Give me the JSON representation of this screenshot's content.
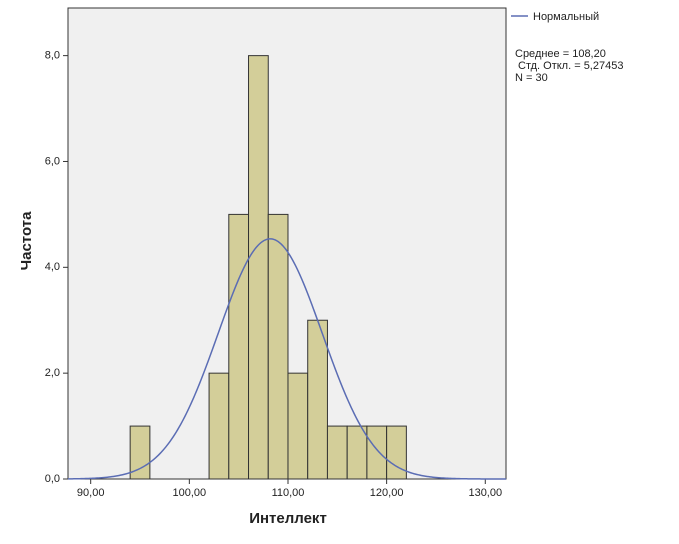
{
  "chart_data": {
    "type": "histogram",
    "xlabel": "Интеллект",
    "ylabel": "Частота",
    "bins": [
      94,
      96,
      98,
      100,
      102,
      104,
      106,
      108,
      110,
      112,
      114,
      116,
      118,
      120,
      122
    ],
    "values": [
      1,
      0,
      0,
      0,
      2,
      5,
      8,
      5,
      2,
      3,
      1,
      1,
      1,
      1
    ],
    "color": "#d3ce99",
    "xlim": [
      87.7,
      132.1
    ],
    "ylim": [
      0,
      8.9
    ],
    "xticks": [
      {
        "value": 90,
        "label": "90,00"
      },
      {
        "value": 100,
        "label": "100,00"
      },
      {
        "value": 110,
        "label": "110,00"
      },
      {
        "value": 120,
        "label": "120,00"
      },
      {
        "value": 130,
        "label": "130,00"
      }
    ],
    "yticks": [
      {
        "value": 0,
        "label": "0,0"
      },
      {
        "value": 2,
        "label": "2,0"
      },
      {
        "value": 4,
        "label": "4,0"
      },
      {
        "value": 6,
        "label": "6,0"
      },
      {
        "value": 8,
        "label": "8,0"
      }
    ],
    "normal": {
      "name": "Нормальный",
      "color": "#5b6db4",
      "mean": {
        "value": 108.2,
        "label": "Среднее = 108,20"
      },
      "sd": {
        "value": 5.27453,
        "label": "Стд. Откл. = 5,27453"
      },
      "n": {
        "value": 30,
        "label": "N = 30"
      }
    }
  }
}
